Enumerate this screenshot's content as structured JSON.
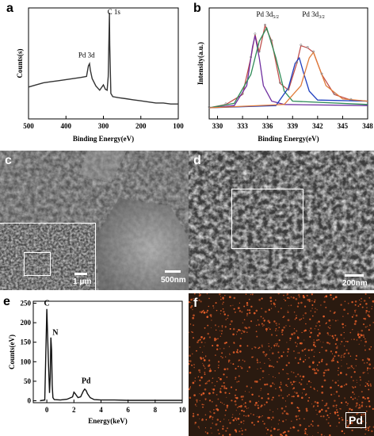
{
  "figure": {
    "panel_labels": [
      "a",
      "b",
      "c",
      "d",
      "e",
      "f"
    ],
    "colors": {
      "map_bg": "#2a1a10",
      "map_dot": "#e8602a",
      "sem_gray": "#5a5a5a"
    }
  },
  "panel_a": {
    "label": "a",
    "chart_data": {
      "type": "line",
      "xlabel": "Binding Energy(eV)",
      "ylabel": "Counts(s)",
      "xlim": [
        500,
        100
      ],
      "x_ticks": [
        "500",
        "400",
        "300",
        "200",
        "100"
      ],
      "annotations": [
        "Pd 3d",
        "C 1s"
      ],
      "series": [
        {
          "x": [
            500,
            480,
            460,
            440,
            420,
            400,
            380,
            360,
            345,
            340,
            337,
            335,
            330,
            320,
            310,
            300,
            295,
            290,
            287,
            285,
            284,
            283,
            280,
            275,
            260,
            240,
            220,
            200,
            180,
            160,
            140,
            120,
            100
          ],
          "y": [
            0.3,
            0.32,
            0.34,
            0.35,
            0.36,
            0.37,
            0.38,
            0.39,
            0.4,
            0.5,
            0.52,
            0.46,
            0.38,
            0.31,
            0.27,
            0.32,
            0.28,
            0.27,
            0.4,
            0.8,
            1.0,
            0.7,
            0.24,
            0.21,
            0.2,
            0.19,
            0.18,
            0.17,
            0.16,
            0.15,
            0.15,
            0.14,
            0.14
          ]
        }
      ]
    }
  },
  "panel_b": {
    "label": "b",
    "chart_data": {
      "type": "line",
      "xlabel": "Binding Energy(eV)",
      "ylabel": "Intensity(a.u.)",
      "xlim": [
        329,
        348
      ],
      "x_ticks": [
        "330",
        "333",
        "336",
        "339",
        "342",
        "345",
        "348"
      ],
      "annotations": [
        "Pd 3d5/2",
        "Pd 3d3/2"
      ],
      "series": [
        {
          "color": "#c0504d",
          "x": [
            329,
            331,
            333,
            334,
            334.5,
            335,
            335.7,
            336.5,
            337.5,
            338.5,
            339.5,
            340,
            340.8,
            341.5,
            342.5,
            344,
            346,
            348
          ],
          "y": [
            0.1,
            0.13,
            0.22,
            0.55,
            0.76,
            0.6,
            0.84,
            0.7,
            0.32,
            0.26,
            0.5,
            0.66,
            0.64,
            0.6,
            0.4,
            0.22,
            0.17,
            0.16
          ]
        },
        {
          "color": "#7030a0",
          "x": [
            329,
            332,
            333.5,
            334.2,
            334.5,
            335,
            335.5,
            336.5,
            338,
            348
          ],
          "y": [
            0.1,
            0.12,
            0.3,
            0.65,
            0.75,
            0.55,
            0.3,
            0.16,
            0.13,
            0.12
          ]
        },
        {
          "color": "#2e8b57",
          "x": [
            329,
            332,
            334,
            335,
            335.9,
            337,
            338,
            339,
            348
          ],
          "y": [
            0.1,
            0.14,
            0.4,
            0.7,
            0.82,
            0.55,
            0.25,
            0.16,
            0.13
          ]
        },
        {
          "color": "#1f3fbf",
          "x": [
            329,
            337,
            338.5,
            339.3,
            339.8,
            340.3,
            341,
            342,
            348
          ],
          "y": [
            0.1,
            0.12,
            0.28,
            0.5,
            0.55,
            0.42,
            0.25,
            0.17,
            0.16
          ]
        },
        {
          "color": "#e07b39",
          "x": [
            329,
            338,
            340,
            341,
            341.5,
            342,
            343,
            345,
            348
          ],
          "y": [
            0.1,
            0.13,
            0.3,
            0.55,
            0.6,
            0.5,
            0.3,
            0.18,
            0.16
          ]
        }
      ]
    }
  },
  "panel_c": {
    "label": "c",
    "scalebar_main": "500nm",
    "scalebar_inset": "1 μm"
  },
  "panel_d": {
    "label": "d",
    "scalebar": "200nm"
  },
  "panel_e": {
    "label": "e",
    "chart_data": {
      "type": "line",
      "xlabel": "Energy(keV)",
      "ylabel": "Counts(eV)",
      "xlim": [
        -1,
        10
      ],
      "ylim": [
        -5,
        255
      ],
      "x_ticks": [
        "0",
        "2",
        "4",
        "6",
        "8",
        "10"
      ],
      "y_ticks": [
        "0",
        "50",
        "100",
        "150",
        "200",
        "250"
      ],
      "annotations": [
        "C",
        "N",
        "Pd"
      ],
      "series": [
        {
          "x": [
            -0.5,
            -0.15,
            0,
            0.1,
            0.2,
            0.25,
            0.3,
            0.35,
            0.4,
            0.45,
            0.55,
            1.0,
            1.5,
            1.9,
            2.0,
            2.1,
            2.3,
            2.5,
            2.7,
            2.8,
            2.9,
            3.0,
            3.2,
            3.5,
            4,
            5,
            6,
            7,
            8,
            9,
            10
          ],
          "y": [
            0,
            2,
            235,
            120,
            20,
            60,
            162,
            130,
            40,
            8,
            3,
            2,
            4,
            10,
            22,
            18,
            8,
            10,
            25,
            30,
            26,
            18,
            8,
            3,
            2,
            2,
            1,
            1,
            1,
            1,
            1
          ]
        }
      ]
    }
  },
  "panel_f": {
    "label": "f",
    "element_label": "Pd"
  }
}
